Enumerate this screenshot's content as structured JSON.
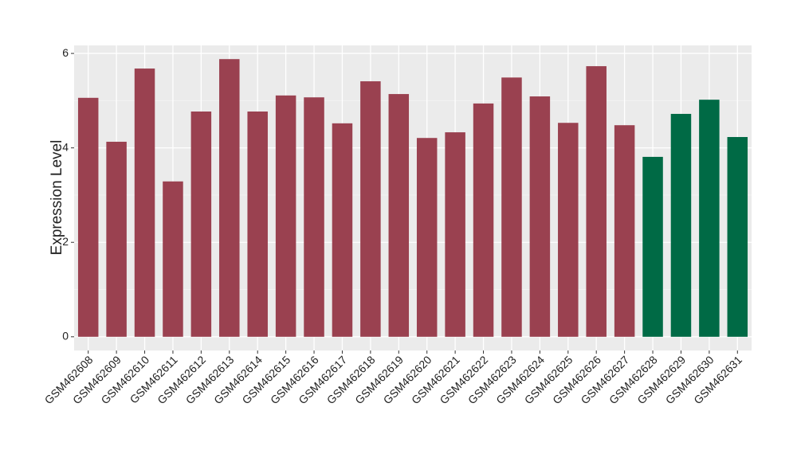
{
  "chart_data": {
    "type": "bar",
    "y_label": "Expression Level",
    "categories": [
      "GSM462608",
      "GSM462609",
      "GSM462610",
      "GSM462611",
      "GSM462612",
      "GSM462613",
      "GSM462614",
      "GSM462615",
      "GSM462616",
      "GSM462617",
      "GSM462618",
      "GSM462619",
      "GSM462620",
      "GSM462621",
      "GSM462622",
      "GSM462623",
      "GSM462624",
      "GSM462625",
      "GSM462626",
      "GSM462627",
      "GSM462628",
      "GSM462629",
      "GSM462630",
      "GSM462631"
    ],
    "values": [
      5.06,
      4.13,
      5.68,
      3.29,
      4.77,
      5.88,
      4.77,
      5.11,
      5.07,
      4.52,
      5.41,
      5.14,
      4.21,
      4.33,
      4.94,
      5.49,
      5.09,
      4.53,
      5.73,
      4.48,
      3.81,
      4.72,
      5.02,
      4.23
    ],
    "colors": [
      "#9a4150",
      "#9a4150",
      "#9a4150",
      "#9a4150",
      "#9a4150",
      "#9a4150",
      "#9a4150",
      "#9a4150",
      "#9a4150",
      "#9a4150",
      "#9a4150",
      "#9a4150",
      "#9a4150",
      "#9a4150",
      "#9a4150",
      "#9a4150",
      "#9a4150",
      "#9a4150",
      "#9a4150",
      "#9a4150",
      "#006a45",
      "#006a45",
      "#006a45",
      "#006a45"
    ],
    "ylim": [
      -0.29,
      6.17
    ],
    "yticks": [
      0,
      2,
      4,
      6
    ],
    "grid": true
  }
}
